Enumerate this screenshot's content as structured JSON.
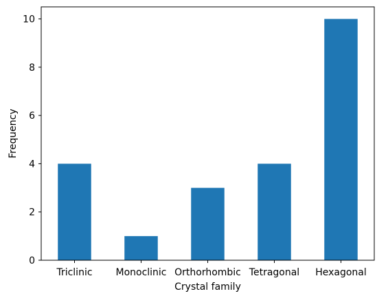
{
  "chart_data": {
    "type": "bar",
    "categories": [
      "Triclinic",
      "Monoclinic",
      "Orthorhombic",
      "Tetragonal",
      "Hexagonal"
    ],
    "values": [
      4,
      1,
      3,
      4,
      10
    ],
    "xlabel": "Crystal family",
    "ylabel": "Frequency",
    "ylim": [
      0,
      10.5
    ],
    "yticks": [
      0,
      2,
      4,
      6,
      8,
      10
    ],
    "bar_color": "#1f77b4",
    "grid": false,
    "legend": false
  }
}
